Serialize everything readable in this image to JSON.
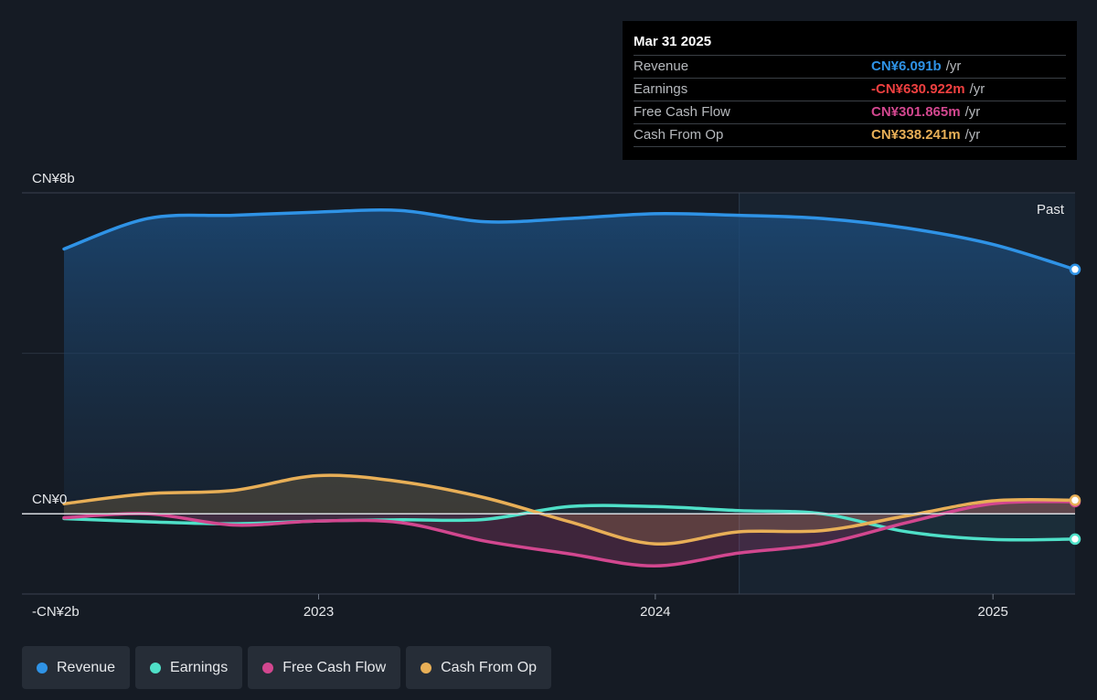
{
  "chart_data": {
    "type": "area",
    "y_unit": "CN¥ billions",
    "ylim": [
      -2,
      8
    ],
    "xlim": [
      "2022-03-31",
      "2025-03-31"
    ],
    "y_ticks": [
      {
        "value": 8,
        "label": "CN¥8b"
      },
      {
        "value": 0,
        "label": "CN¥0"
      },
      {
        "value": -2,
        "label": "-CN¥2b"
      }
    ],
    "x_ticks": [
      {
        "value": "2023-01-01",
        "label": "2023"
      },
      {
        "value": "2024-01-01",
        "label": "2024"
      },
      {
        "value": "2025-01-01",
        "label": "2025"
      }
    ],
    "past_region_start": "2024-04-01",
    "past_label": "Past",
    "grid": "horizontal",
    "legend_position": "bottom-left",
    "series": [
      {
        "name": "Revenue",
        "color": "#2f93e6",
        "x": [
          "2022-03-31",
          "2022-06-30",
          "2022-09-30",
          "2022-12-31",
          "2023-03-31",
          "2023-06-30",
          "2023-09-30",
          "2023-12-31",
          "2024-03-31",
          "2024-06-30",
          "2024-09-30",
          "2024-12-31",
          "2025-03-31"
        ],
        "values": [
          6.6,
          7.36,
          7.44,
          7.52,
          7.56,
          7.28,
          7.36,
          7.48,
          7.44,
          7.36,
          7.12,
          6.72,
          6.091
        ]
      },
      {
        "name": "Earnings",
        "color": "#4fe0c8",
        "x": [
          "2022-03-31",
          "2022-06-30",
          "2022-09-30",
          "2022-12-31",
          "2023-03-31",
          "2023-06-30",
          "2023-09-30",
          "2023-12-31",
          "2024-03-31",
          "2024-06-30",
          "2024-09-30",
          "2024-12-31",
          "2025-03-31"
        ],
        "values": [
          -0.12,
          -0.2,
          -0.25,
          -0.18,
          -0.15,
          -0.14,
          0.18,
          0.18,
          0.08,
          0.0,
          -0.45,
          -0.64,
          -0.631
        ]
      },
      {
        "name": "Free Cash Flow",
        "color": "#d2478f",
        "x": [
          "2022-03-31",
          "2022-06-30",
          "2022-09-30",
          "2022-12-31",
          "2023-03-31",
          "2023-06-30",
          "2023-09-30",
          "2023-12-31",
          "2024-03-31",
          "2024-06-30",
          "2024-09-30",
          "2024-12-31",
          "2025-03-31"
        ],
        "values": [
          -0.1,
          0.0,
          -0.28,
          -0.18,
          -0.22,
          -0.68,
          -1.0,
          -1.3,
          -0.98,
          -0.75,
          -0.22,
          0.25,
          0.302
        ]
      },
      {
        "name": "Cash From Op",
        "color": "#e8af57",
        "x": [
          "2022-03-31",
          "2022-06-30",
          "2022-09-30",
          "2022-12-31",
          "2023-03-31",
          "2023-06-30",
          "2023-09-30",
          "2023-12-31",
          "2024-03-31",
          "2024-06-30",
          "2024-09-30",
          "2024-12-31",
          "2025-03-31"
        ],
        "values": [
          0.25,
          0.5,
          0.58,
          0.95,
          0.8,
          0.4,
          -0.2,
          -0.75,
          -0.45,
          -0.42,
          -0.05,
          0.32,
          0.338
        ]
      }
    ]
  },
  "tooltip": {
    "date": "Mar 31 2025",
    "rows": [
      {
        "label": "Revenue",
        "value": "CN¥6.091b",
        "unit": "/yr",
        "color": "#2f93e6"
      },
      {
        "label": "Earnings",
        "value": "-CN¥630.922m",
        "unit": "/yr",
        "color": "#ef4040"
      },
      {
        "label": "Free Cash Flow",
        "value": "CN¥301.865m",
        "unit": "/yr",
        "color": "#d2478f"
      },
      {
        "label": "Cash From Op",
        "value": "CN¥338.241m",
        "unit": "/yr",
        "color": "#e8af57"
      }
    ]
  },
  "legend": [
    {
      "label": "Revenue",
      "color": "#2f93e6"
    },
    {
      "label": "Earnings",
      "color": "#4fe0c8"
    },
    {
      "label": "Free Cash Flow",
      "color": "#d2478f"
    },
    {
      "label": "Cash From Op",
      "color": "#e8af57"
    }
  ]
}
